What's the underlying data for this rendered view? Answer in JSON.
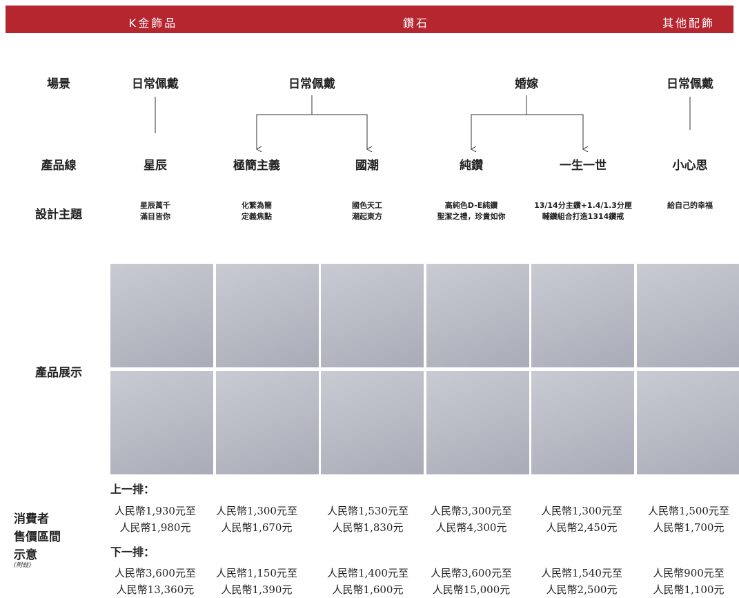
{
  "header": {
    "categories": [
      "K金飾品",
      "鑽石",
      "其他配飾"
    ]
  },
  "row_labels": {
    "scene": "場景",
    "product_line": "產品線",
    "design_theme": "設計主題",
    "display": "產品展示",
    "price": [
      "消費者",
      "售價區間",
      "示意"
    ],
    "note": "(附註)"
  },
  "scenes": [
    "日常佩戴",
    "日常佩戴",
    "婚嫁",
    "日常佩戴"
  ],
  "product_lines": [
    "星辰",
    "極簡主義",
    "國潮",
    "純鑽",
    "一生一世",
    "小心思"
  ],
  "themes": [
    [
      "星辰萬千",
      "滿目皆你"
    ],
    [
      "化繁為簡",
      "定義焦點"
    ],
    [
      "國色天工",
      "潮起東方"
    ],
    [
      "高純色D-E純鑽",
      "聖潔之禮，珍貴如你"
    ],
    [
      "13/14分主鑽+1.4/1.3分厘",
      "輔鑽組合打造1314鑽戒"
    ],
    [
      "給自己的幸福"
    ]
  ],
  "prices": {
    "top_label": "上一排：",
    "top": [
      [
        "人民幣1,930元至",
        "人民幣1,980元"
      ],
      [
        "人民幣1,300元至",
        "人民幣1,670元"
      ],
      [
        "人民幣1,530元至",
        "人民幣1,830元"
      ],
      [
        "人民幣3,300元至",
        "人民幣4,300元"
      ],
      [
        "人民幣1,300元至",
        "人民幣2,450元"
      ],
      [
        "人民幣1,500元至",
        "人民幣1,700元"
      ]
    ],
    "bottom_label": "下一排：",
    "bottom": [
      [
        "人民幣3,600元至",
        "人民幣13,360元"
      ],
      [
        "人民幣1,150元至",
        "人民幣1,390元"
      ],
      [
        "人民幣1,400元至",
        "人民幣1,600元"
      ],
      [
        "人民幣3,600元至",
        "人民幣15,000元"
      ],
      [
        "人民幣1,540元至",
        "人民幣2,500元"
      ],
      [
        "人民幣900元至",
        "人民幣1,100元"
      ]
    ]
  }
}
